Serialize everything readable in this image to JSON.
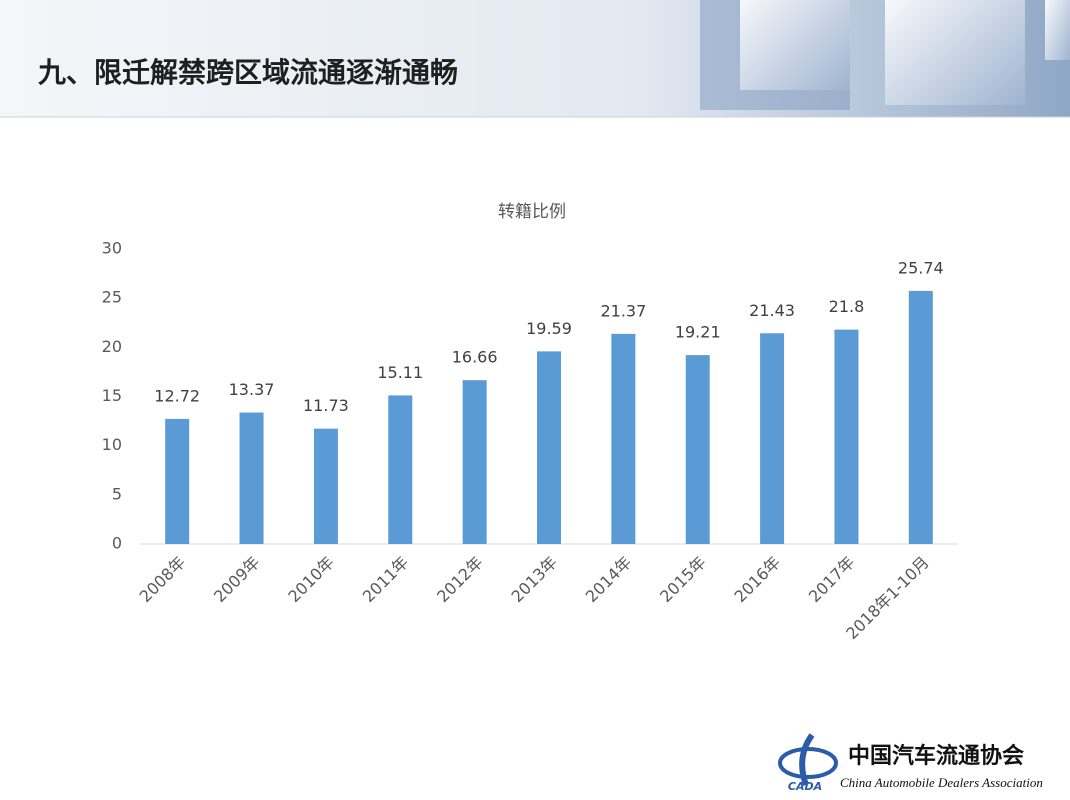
{
  "header": {
    "title": "九、限迁解禁跨区域流通逐渐通畅"
  },
  "chart_data": {
    "type": "bar",
    "title": "转籍比例",
    "categories": [
      "2008年",
      "2009年",
      "2010年",
      "2011年",
      "2012年",
      "2013年",
      "2014年",
      "2015年",
      "2016年",
      "2017年",
      "2018年1-10月"
    ],
    "values": [
      12.72,
      13.37,
      11.73,
      15.11,
      16.66,
      19.59,
      21.37,
      19.21,
      21.43,
      21.8,
      25.74
    ],
    "color": "#5b9bd5",
    "ylim": [
      0,
      30
    ],
    "yticks": [
      0,
      5,
      10,
      15,
      20,
      25,
      30
    ],
    "grid": false
  },
  "footer": {
    "logo": "CADA",
    "name": "中国汽车流通协会",
    "name_en": "China Automobile Dealers Association"
  }
}
